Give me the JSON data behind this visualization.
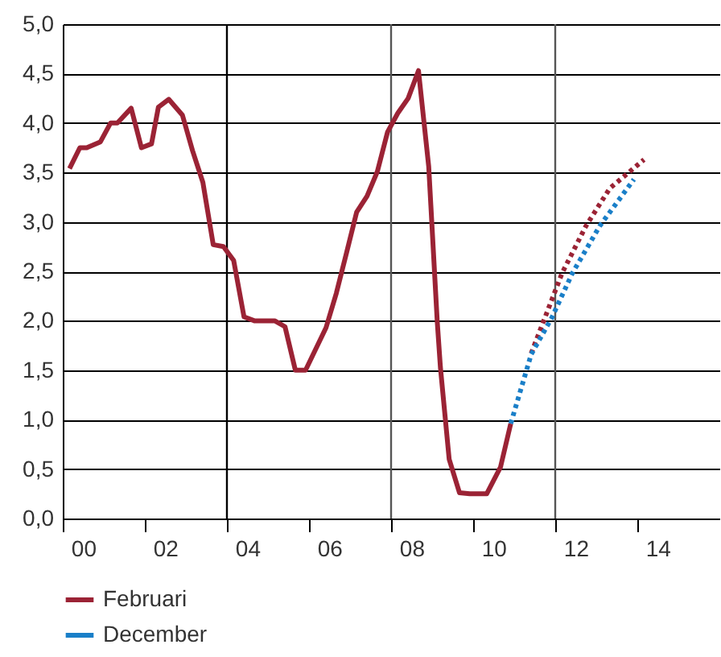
{
  "chart_data": {
    "type": "line",
    "xlim": [
      "2000-01",
      "2016-01"
    ],
    "xticks": [
      {
        "value": "2000-01",
        "label": null
      },
      {
        "value": "2000-07",
        "label": "00"
      },
      {
        "value": "2002-01",
        "label": null
      },
      {
        "value": "2002-07",
        "label": "02"
      },
      {
        "value": "2004-01",
        "label": null
      },
      {
        "value": "2004-07",
        "label": "04"
      },
      {
        "value": "2006-01",
        "label": null
      },
      {
        "value": "2006-07",
        "label": "06"
      },
      {
        "value": "2008-01",
        "label": null
      },
      {
        "value": "2008-07",
        "label": "08"
      },
      {
        "value": "2010-01",
        "label": null
      },
      {
        "value": "2010-07",
        "label": "10"
      },
      {
        "value": "2012-01",
        "label": null
      },
      {
        "value": "2012-07",
        "label": "12"
      },
      {
        "value": "2014-01",
        "label": null
      },
      {
        "value": "2014-07",
        "label": "14"
      }
    ],
    "ylim": [
      0,
      5
    ],
    "yticks": [
      {
        "value": 0,
        "label": "0,0"
      },
      {
        "value": 0.5,
        "label": "0,5"
      },
      {
        "value": 1,
        "label": "1,0"
      },
      {
        "value": 1.5,
        "label": "1,5"
      },
      {
        "value": 2,
        "label": "2,0"
      },
      {
        "value": 2.5,
        "label": "2,5"
      },
      {
        "value": 3,
        "label": "3,0"
      },
      {
        "value": 3.5,
        "label": "3,5"
      },
      {
        "value": 4,
        "label": "4,0"
      },
      {
        "value": 4.5,
        "label": "4,5"
      },
      {
        "value": 5,
        "label": "5,0"
      }
    ],
    "grid": "y",
    "legend": "bottom",
    "ref_lines": [
      {
        "axis": "x",
        "value": "2004-01",
        "color": "#000000"
      },
      {
        "axis": "x",
        "value": "2008-01",
        "color": "#555555"
      },
      {
        "axis": "x",
        "value": "2012-01",
        "color": "#555555"
      }
    ],
    "series": [
      {
        "name": "Februari",
        "color": "#9b2335",
        "line_style": "solid",
        "x": [
          "2000-03",
          "2000-06",
          "2000-08",
          "2000-12",
          "2001-03",
          "2001-05",
          "2001-09",
          "2001-12",
          "2002-03",
          "2002-05",
          "2002-08",
          "2002-12",
          "2003-03",
          "2003-06",
          "2003-09",
          "2003-12",
          "2004-03",
          "2004-06",
          "2004-09",
          "2005-03",
          "2005-06",
          "2005-09",
          "2005-12",
          "2006-06",
          "2006-09",
          "2006-12",
          "2007-03",
          "2007-06",
          "2007-09",
          "2007-12",
          "2008-03",
          "2008-06",
          "2008-09",
          "2008-12",
          "2009-02-15",
          "2009-03-15",
          "2009-06",
          "2009-09",
          "2009-12",
          "2010-05",
          "2010-09",
          "2010-12"
        ],
        "values": [
          3.54,
          3.75,
          3.75,
          3.81,
          4.0,
          4.0,
          4.15,
          3.75,
          3.79,
          4.16,
          4.24,
          4.08,
          3.72,
          3.4,
          2.77,
          2.75,
          2.61,
          2.04,
          2.0,
          2.0,
          1.94,
          1.5,
          1.5,
          1.93,
          2.28,
          2.69,
          3.1,
          3.26,
          3.51,
          3.91,
          4.1,
          4.25,
          4.53,
          3.56,
          1.99,
          1.53,
          0.6,
          0.26,
          0.25,
          0.25,
          0.52,
          0.96
        ]
      },
      {
        "color": "#9b2335",
        "line_style": "dotted",
        "x": [
          "2011-06",
          "2012-03",
          "2012-10",
          "2013-05",
          "2014-03"
        ],
        "values": [
          1.67,
          2.48,
          2.96,
          3.34,
          3.63
        ]
      },
      {
        "name": "December",
        "color": "#1a7fc8",
        "line_style": "dotted",
        "x": [
          "2010-12",
          "2011-06",
          "2011-12",
          "2012-06",
          "2013-02",
          "2013-12"
        ],
        "values": [
          0.96,
          1.66,
          2.03,
          2.48,
          2.96,
          3.43
        ]
      }
    ]
  }
}
